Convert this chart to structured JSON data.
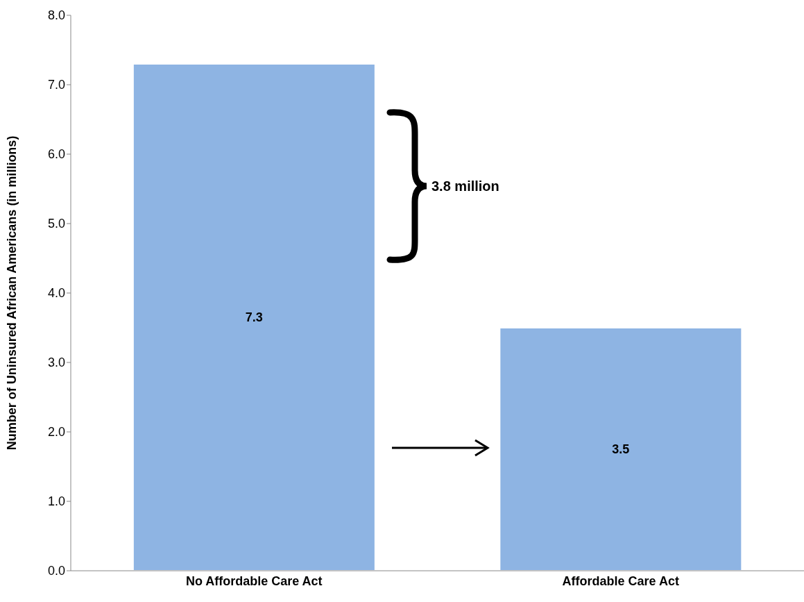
{
  "chart_data": {
    "type": "bar",
    "ylabel": "Number of Uninsured African Americans (in millions)",
    "categories": [
      "No Affordable Care Act",
      "Affordable Care Act"
    ],
    "values": [
      7.3,
      3.5
    ],
    "color": "#8eb4e3",
    "ylim": [
      0,
      8
    ],
    "yticks": [
      {
        "value": 0,
        "label": "0.0"
      },
      {
        "value": 1,
        "label": "1.0"
      },
      {
        "value": 2,
        "label": "2.0"
      },
      {
        "value": 3,
        "label": "3.0"
      },
      {
        "value": 4,
        "label": "4.0"
      },
      {
        "value": 5,
        "label": "5.0"
      },
      {
        "value": 6,
        "label": "6.0"
      },
      {
        "value": 7,
        "label": "7.0"
      },
      {
        "value": 8,
        "label": "8.0"
      }
    ],
    "data_labels": true,
    "grid": false,
    "legend": false,
    "annotations": [
      "3.8 million"
    ]
  }
}
